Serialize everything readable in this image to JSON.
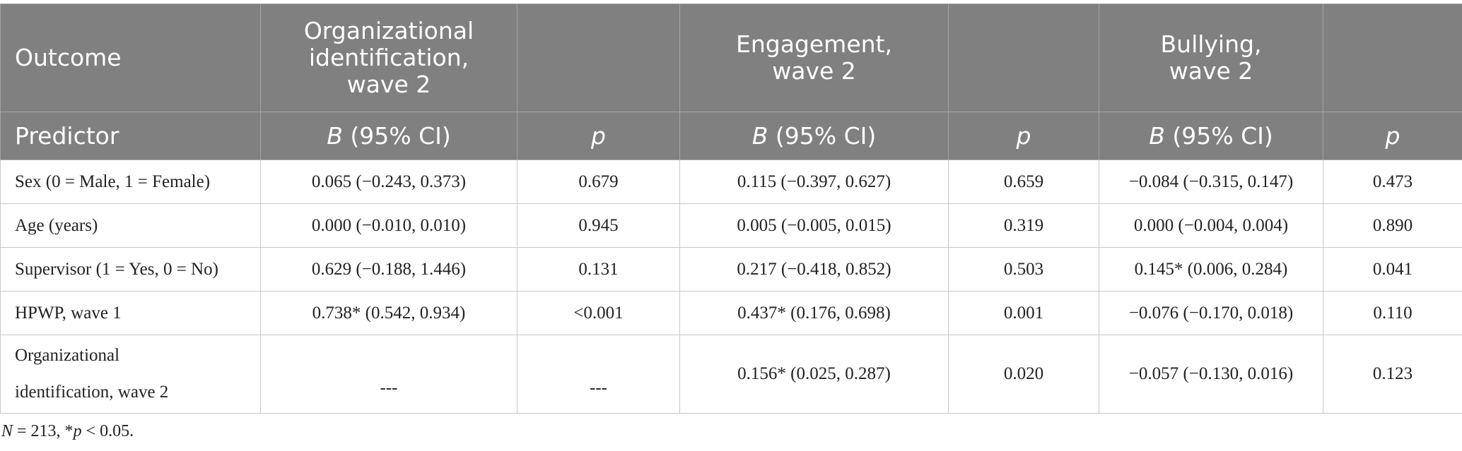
{
  "header": {
    "outcome_label": "Outcome",
    "predictor_label": "Predictor",
    "outcomes": [
      {
        "line1": "Organizational",
        "line2": "identification,",
        "line3": "wave 2"
      },
      {
        "line1": "Engagement,",
        "line2": "wave 2"
      },
      {
        "line1": "Bullying,",
        "line2": "wave 2"
      }
    ],
    "b_italic": "B",
    "b_suffix": " (95% CI)",
    "p_label": "p"
  },
  "rows": [
    {
      "predictor": "Sex (0 = Male, 1 = Female)",
      "org_b": "0.065 (−0.243, 0.373)",
      "org_p": "0.679",
      "eng_b": "0.115 (−0.397, 0.627)",
      "eng_p": "0.659",
      "bul_b": "−0.084 (−0.315, 0.147)",
      "bul_p": "0.473"
    },
    {
      "predictor": "Age (years)",
      "org_b": "0.000 (−0.010, 0.010)",
      "org_p": "0.945",
      "eng_b": "0.005 (−0.005, 0.015)",
      "eng_p": "0.319",
      "bul_b": "0.000 (−0.004, 0.004)",
      "bul_p": "0.890"
    },
    {
      "predictor": "Supervisor (1 = Yes, 0 = No)",
      "org_b": "0.629 (−0.188, 1.446)",
      "org_p": "0.131",
      "eng_b": "0.217 (−0.418, 0.852)",
      "eng_p": "0.503",
      "bul_b": "0.145* (0.006, 0.284)",
      "bul_p": "0.041"
    },
    {
      "predictor": "HPWP, wave 1",
      "org_b": "0.738* (0.542, 0.934)",
      "org_p": "<0.001",
      "eng_b": "0.437* (0.176, 0.698)",
      "eng_p": "0.001",
      "bul_b": "−0.076 (−0.170, 0.018)",
      "bul_p": "0.110"
    },
    {
      "predictor_line1": "Organizational",
      "predictor_line2": "identification, wave 2",
      "org_b": "---",
      "org_p": "---",
      "eng_b": "0.156* (0.025, 0.287)",
      "eng_p": "0.020",
      "bul_b": "−0.057 (−0.130, 0.016)",
      "bul_p": "0.123"
    }
  ],
  "footnote": {
    "n_italic": "N",
    "n_rest": " = 213, *",
    "p_italic": "p",
    "p_rest": " < 0.05."
  }
}
